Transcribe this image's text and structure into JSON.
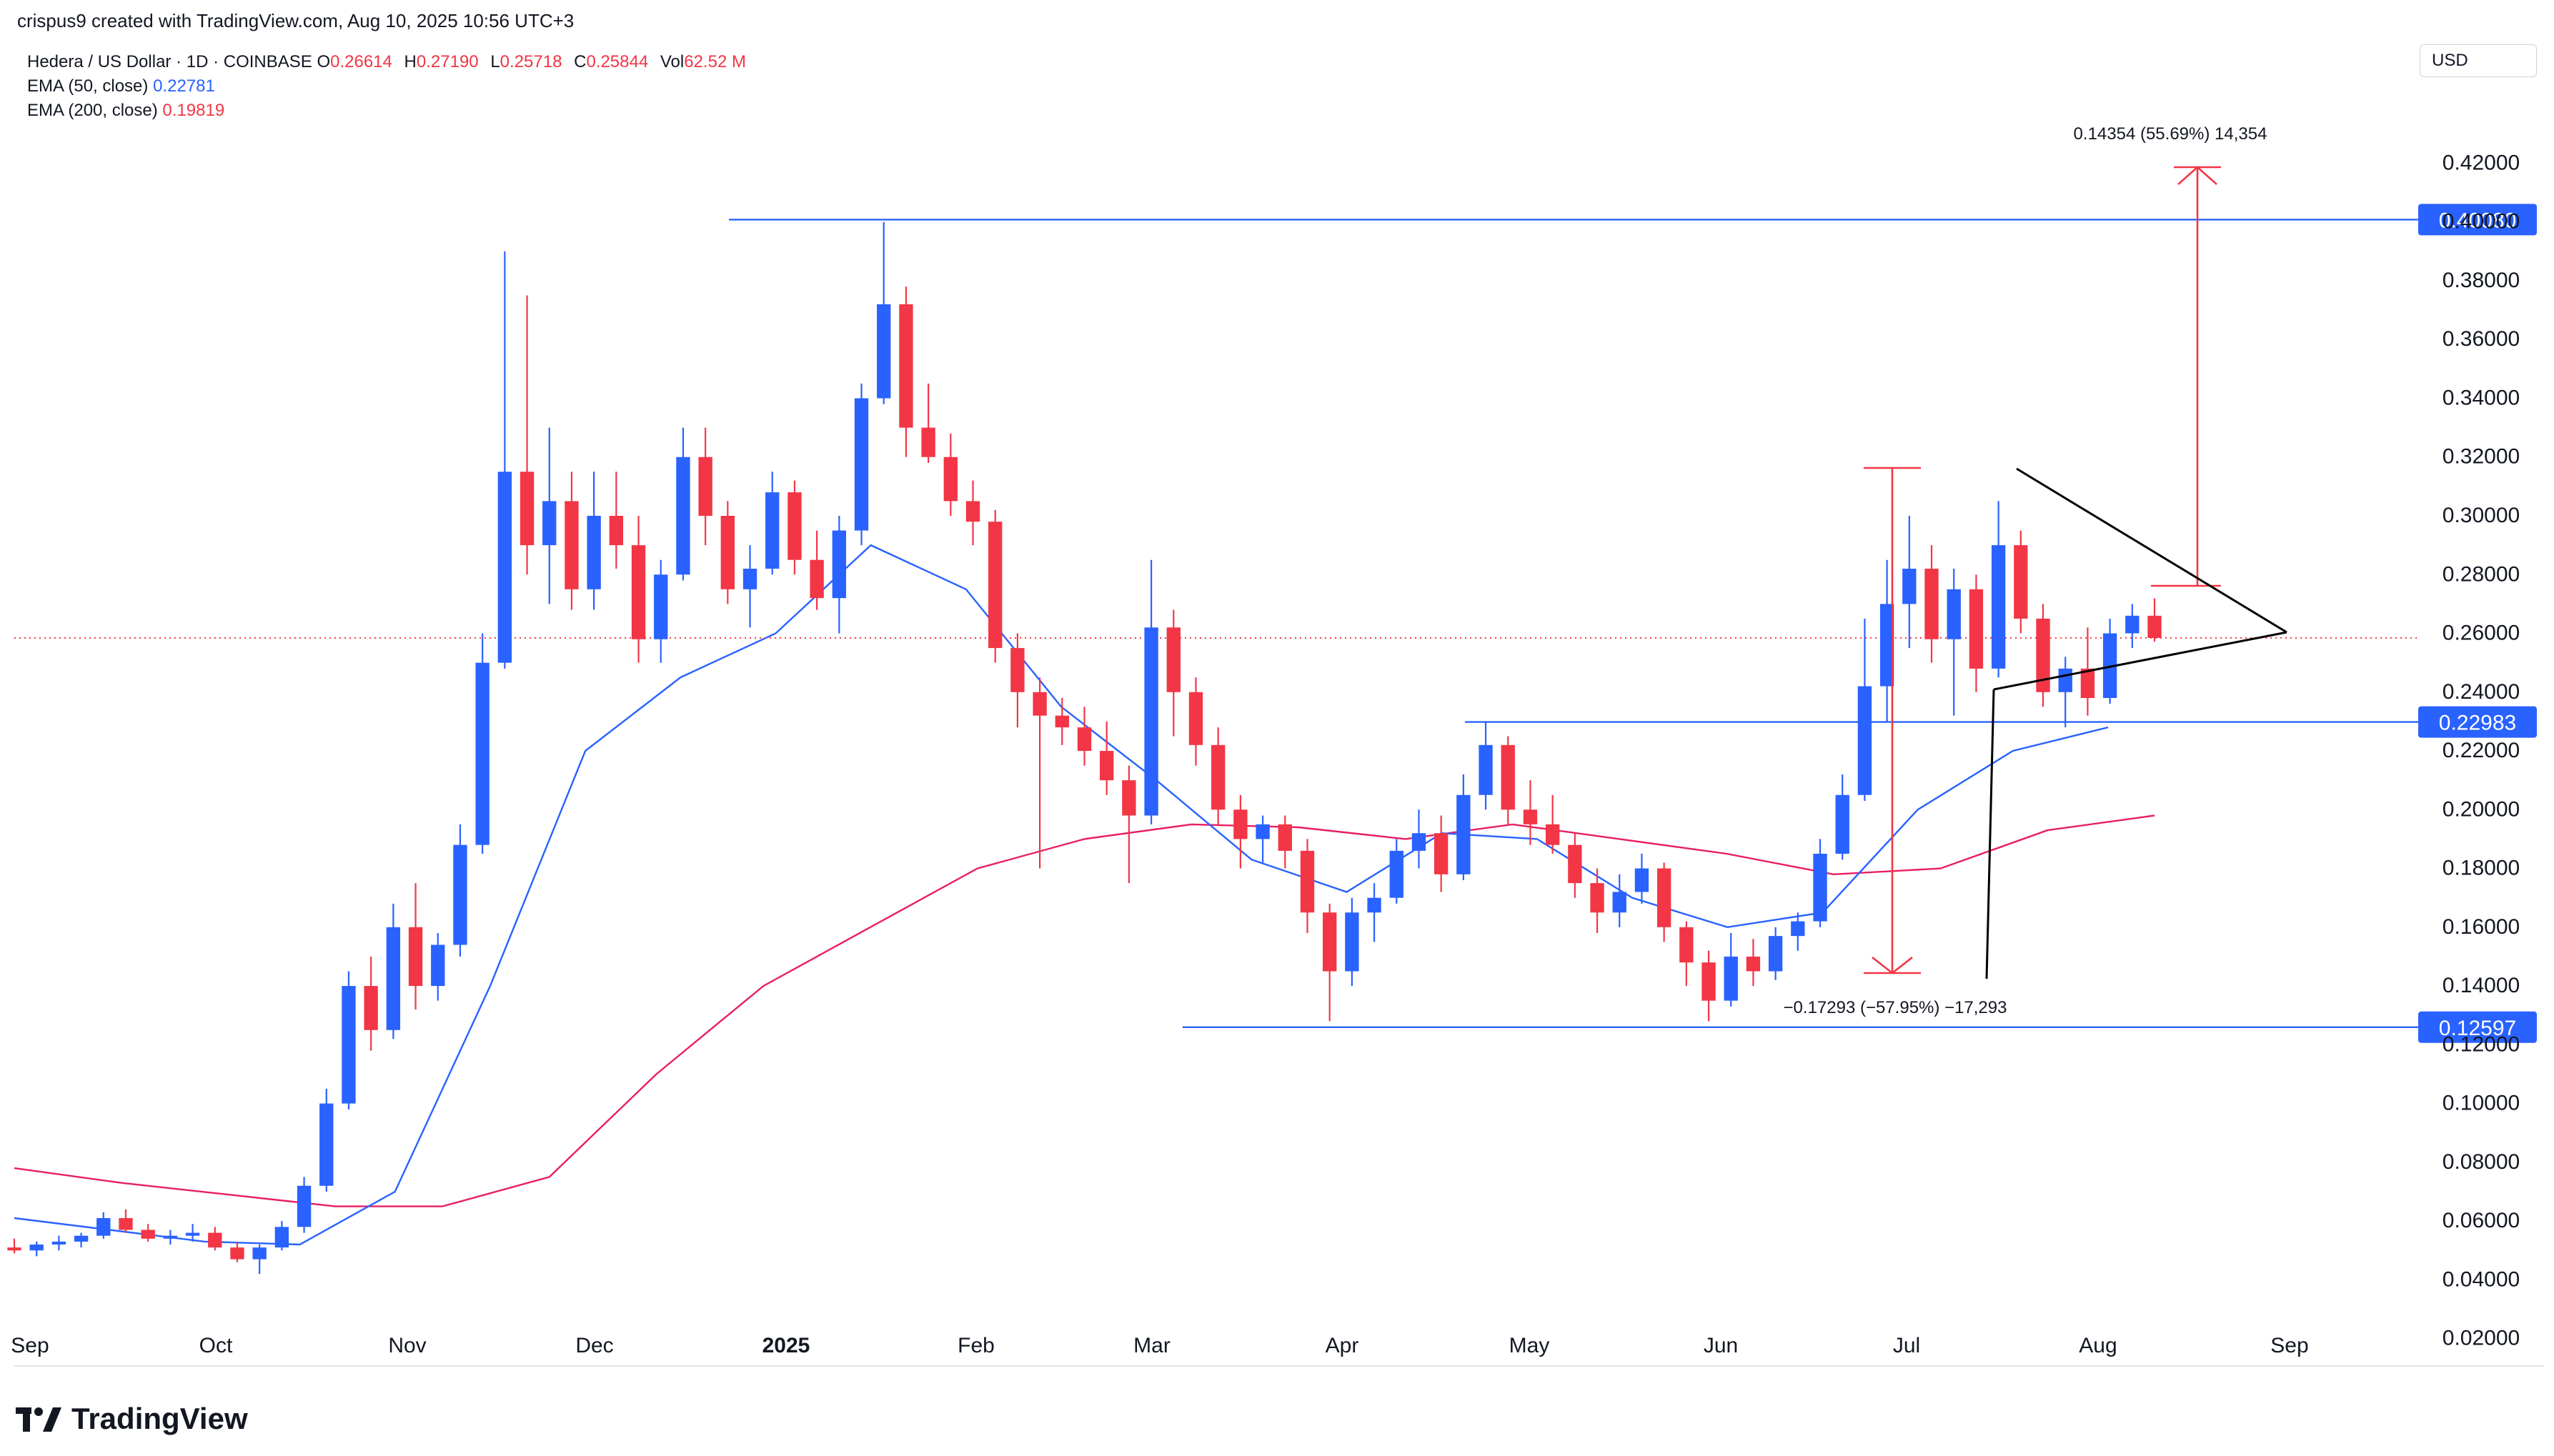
{
  "header": {
    "created_by": "crispus9 created with TradingView.com, Aug 10, 2025 10:56 UTC+3"
  },
  "legend": {
    "symbol": "Hedera / US Dollar · 1D · COINBASE",
    "ohlc": [
      {
        "k": "O",
        "v": "0.26614"
      },
      {
        "k": "H",
        "v": "0.27190"
      },
      {
        "k": "L",
        "v": "0.25718"
      },
      {
        "k": "C",
        "v": "0.25844"
      },
      {
        "k": "Vol",
        "v": "62.52 M"
      }
    ],
    "ema50": {
      "label": "EMA (50, close)",
      "value": "0.22781"
    },
    "ema200": {
      "label": "EMA (200, close)",
      "value": "0.19819"
    }
  },
  "currency_button": "USD",
  "brand": "TradingView",
  "colors": {
    "up": "#2962ff",
    "down": "#f23645",
    "ema50": "#2962ff",
    "ema200": "#e91e63",
    "level_line": "#2962ff",
    "arrow": "#f23645",
    "trendline": "#000000",
    "last_price": "#f23645",
    "grid_text": "#131722"
  },
  "chart_data": {
    "type": "candlestick",
    "symbol": "Hedera / US Dollar",
    "interval": "1D",
    "exchange": "COINBASE",
    "x_labels": [
      "Sep",
      "Oct",
      "Nov",
      "Dec",
      "2025",
      "Feb",
      "Mar",
      "Apr",
      "May",
      "Jun",
      "Jul",
      "Aug",
      "Sep"
    ],
    "y_ticks": [
      "0.42000",
      "0.40000",
      "0.38000",
      "0.36000",
      "0.34000",
      "0.32000",
      "0.30000",
      "0.28000",
      "0.26000",
      "0.24000",
      "0.22000",
      "0.20000",
      "0.18000",
      "0.16000",
      "0.14000",
      "0.12000",
      "0.10000",
      "0.08000",
      "0.06000",
      "0.04000",
      "0.02000"
    ],
    "ylim": [
      0.0,
      0.43
    ],
    "price_labels": [
      {
        "name": "resistance",
        "text": "0.40080",
        "value": 0.4008
      },
      {
        "name": "support-mid",
        "text": "0.22983",
        "value": 0.22983
      },
      {
        "name": "support-low",
        "text": "0.12597",
        "value": 0.12597
      }
    ],
    "last_price": 0.25844,
    "annotations": [
      {
        "name": "target-measure",
        "text": "0.14354 (55.69%) 14,354"
      },
      {
        "name": "drop-measure",
        "text": "−0.17293 (−57.95%) −17,293"
      }
    ],
    "ema50_anchor_values": [
      0.061,
      0.057,
      0.053,
      0.052,
      0.07,
      0.14,
      0.22,
      0.245,
      0.26,
      0.29,
      0.275,
      0.235,
      0.21,
      0.183,
      0.172,
      0.192,
      0.19,
      0.17,
      0.16,
      0.165,
      0.2,
      0.22,
      0.228
    ],
    "ema200_anchor_values": [
      0.078,
      0.073,
      0.069,
      0.065,
      0.065,
      0.075,
      0.11,
      0.14,
      0.16,
      0.18,
      0.19,
      0.195,
      0.194,
      0.19,
      0.195,
      0.19,
      0.185,
      0.178,
      0.18,
      0.193,
      0.198
    ],
    "candles": [
      {
        "o": 0.051,
        "h": 0.054,
        "l": 0.049,
        "c": 0.05
      },
      {
        "o": 0.05,
        "h": 0.053,
        "l": 0.048,
        "c": 0.052
      },
      {
        "o": 0.052,
        "h": 0.055,
        "l": 0.05,
        "c": 0.053
      },
      {
        "o": 0.053,
        "h": 0.056,
        "l": 0.051,
        "c": 0.055
      },
      {
        "o": 0.055,
        "h": 0.063,
        "l": 0.054,
        "c": 0.061
      },
      {
        "o": 0.061,
        "h": 0.064,
        "l": 0.056,
        "c": 0.057
      },
      {
        "o": 0.057,
        "h": 0.059,
        "l": 0.053,
        "c": 0.054
      },
      {
        "o": 0.054,
        "h": 0.057,
        "l": 0.052,
        "c": 0.055
      },
      {
        "o": 0.055,
        "h": 0.059,
        "l": 0.053,
        "c": 0.056
      },
      {
        "o": 0.056,
        "h": 0.058,
        "l": 0.05,
        "c": 0.051
      },
      {
        "o": 0.051,
        "h": 0.053,
        "l": 0.046,
        "c": 0.047
      },
      {
        "o": 0.047,
        "h": 0.052,
        "l": 0.042,
        "c": 0.051
      },
      {
        "o": 0.051,
        "h": 0.06,
        "l": 0.05,
        "c": 0.058
      },
      {
        "o": 0.058,
        "h": 0.075,
        "l": 0.056,
        "c": 0.072
      },
      {
        "o": 0.072,
        "h": 0.105,
        "l": 0.07,
        "c": 0.1
      },
      {
        "o": 0.1,
        "h": 0.145,
        "l": 0.098,
        "c": 0.14
      },
      {
        "o": 0.14,
        "h": 0.15,
        "l": 0.118,
        "c": 0.125
      },
      {
        "o": 0.125,
        "h": 0.168,
        "l": 0.122,
        "c": 0.16
      },
      {
        "o": 0.16,
        "h": 0.175,
        "l": 0.132,
        "c": 0.14
      },
      {
        "o": 0.14,
        "h": 0.158,
        "l": 0.135,
        "c": 0.154
      },
      {
        "o": 0.154,
        "h": 0.195,
        "l": 0.15,
        "c": 0.188
      },
      {
        "o": 0.188,
        "h": 0.26,
        "l": 0.185,
        "c": 0.25
      },
      {
        "o": 0.25,
        "h": 0.39,
        "l": 0.248,
        "c": 0.315
      },
      {
        "o": 0.315,
        "h": 0.375,
        "l": 0.28,
        "c": 0.29
      },
      {
        "o": 0.29,
        "h": 0.33,
        "l": 0.27,
        "c": 0.305
      },
      {
        "o": 0.305,
        "h": 0.315,
        "l": 0.268,
        "c": 0.275
      },
      {
        "o": 0.275,
        "h": 0.315,
        "l": 0.268,
        "c": 0.3
      },
      {
        "o": 0.3,
        "h": 0.315,
        "l": 0.282,
        "c": 0.29
      },
      {
        "o": 0.29,
        "h": 0.3,
        "l": 0.25,
        "c": 0.258
      },
      {
        "o": 0.258,
        "h": 0.285,
        "l": 0.25,
        "c": 0.28
      },
      {
        "o": 0.28,
        "h": 0.33,
        "l": 0.278,
        "c": 0.32
      },
      {
        "o": 0.32,
        "h": 0.33,
        "l": 0.29,
        "c": 0.3
      },
      {
        "o": 0.3,
        "h": 0.305,
        "l": 0.27,
        "c": 0.275
      },
      {
        "o": 0.275,
        "h": 0.29,
        "l": 0.262,
        "c": 0.282
      },
      {
        "o": 0.282,
        "h": 0.315,
        "l": 0.28,
        "c": 0.308
      },
      {
        "o": 0.308,
        "h": 0.312,
        "l": 0.28,
        "c": 0.285
      },
      {
        "o": 0.285,
        "h": 0.295,
        "l": 0.268,
        "c": 0.272
      },
      {
        "o": 0.272,
        "h": 0.3,
        "l": 0.26,
        "c": 0.295
      },
      {
        "o": 0.295,
        "h": 0.345,
        "l": 0.29,
        "c": 0.34
      },
      {
        "o": 0.34,
        "h": 0.4,
        "l": 0.338,
        "c": 0.372
      },
      {
        "o": 0.372,
        "h": 0.378,
        "l": 0.32,
        "c": 0.33
      },
      {
        "o": 0.33,
        "h": 0.345,
        "l": 0.318,
        "c": 0.32
      },
      {
        "o": 0.32,
        "h": 0.328,
        "l": 0.3,
        "c": 0.305
      },
      {
        "o": 0.305,
        "h": 0.312,
        "l": 0.29,
        "c": 0.298
      },
      {
        "o": 0.298,
        "h": 0.302,
        "l": 0.25,
        "c": 0.255
      },
      {
        "o": 0.255,
        "h": 0.26,
        "l": 0.228,
        "c": 0.24
      },
      {
        "o": 0.24,
        "h": 0.245,
        "l": 0.18,
        "c": 0.232
      },
      {
        "o": 0.232,
        "h": 0.238,
        "l": 0.222,
        "c": 0.228
      },
      {
        "o": 0.228,
        "h": 0.235,
        "l": 0.215,
        "c": 0.22
      },
      {
        "o": 0.22,
        "h": 0.23,
        "l": 0.205,
        "c": 0.21
      },
      {
        "o": 0.21,
        "h": 0.215,
        "l": 0.175,
        "c": 0.198
      },
      {
        "o": 0.198,
        "h": 0.285,
        "l": 0.195,
        "c": 0.262
      },
      {
        "o": 0.262,
        "h": 0.268,
        "l": 0.225,
        "c": 0.24
      },
      {
        "o": 0.24,
        "h": 0.245,
        "l": 0.215,
        "c": 0.222
      },
      {
        "o": 0.222,
        "h": 0.228,
        "l": 0.195,
        "c": 0.2
      },
      {
        "o": 0.2,
        "h": 0.205,
        "l": 0.18,
        "c": 0.19
      },
      {
        "o": 0.19,
        "h": 0.198,
        "l": 0.182,
        "c": 0.195
      },
      {
        "o": 0.195,
        "h": 0.198,
        "l": 0.18,
        "c": 0.186
      },
      {
        "o": 0.186,
        "h": 0.19,
        "l": 0.158,
        "c": 0.165
      },
      {
        "o": 0.165,
        "h": 0.168,
        "l": 0.128,
        "c": 0.145
      },
      {
        "o": 0.145,
        "h": 0.17,
        "l": 0.14,
        "c": 0.165
      },
      {
        "o": 0.165,
        "h": 0.175,
        "l": 0.155,
        "c": 0.17
      },
      {
        "o": 0.17,
        "h": 0.19,
        "l": 0.168,
        "c": 0.186
      },
      {
        "o": 0.186,
        "h": 0.2,
        "l": 0.18,
        "c": 0.192
      },
      {
        "o": 0.192,
        "h": 0.198,
        "l": 0.172,
        "c": 0.178
      },
      {
        "o": 0.178,
        "h": 0.212,
        "l": 0.176,
        "c": 0.205
      },
      {
        "o": 0.205,
        "h": 0.23,
        "l": 0.2,
        "c": 0.222
      },
      {
        "o": 0.222,
        "h": 0.225,
        "l": 0.195,
        "c": 0.2
      },
      {
        "o": 0.2,
        "h": 0.21,
        "l": 0.188,
        "c": 0.195
      },
      {
        "o": 0.195,
        "h": 0.205,
        "l": 0.185,
        "c": 0.188
      },
      {
        "o": 0.188,
        "h": 0.192,
        "l": 0.17,
        "c": 0.175
      },
      {
        "o": 0.175,
        "h": 0.18,
        "l": 0.158,
        "c": 0.165
      },
      {
        "o": 0.165,
        "h": 0.178,
        "l": 0.16,
        "c": 0.172
      },
      {
        "o": 0.172,
        "h": 0.185,
        "l": 0.168,
        "c": 0.18
      },
      {
        "o": 0.18,
        "h": 0.182,
        "l": 0.155,
        "c": 0.16
      },
      {
        "o": 0.16,
        "h": 0.162,
        "l": 0.14,
        "c": 0.148
      },
      {
        "o": 0.148,
        "h": 0.152,
        "l": 0.128,
        "c": 0.135
      },
      {
        "o": 0.135,
        "h": 0.158,
        "l": 0.133,
        "c": 0.15
      },
      {
        "o": 0.15,
        "h": 0.156,
        "l": 0.14,
        "c": 0.145
      },
      {
        "o": 0.145,
        "h": 0.16,
        "l": 0.142,
        "c": 0.157
      },
      {
        "o": 0.157,
        "h": 0.165,
        "l": 0.152,
        "c": 0.162
      },
      {
        "o": 0.162,
        "h": 0.19,
        "l": 0.16,
        "c": 0.185
      },
      {
        "o": 0.185,
        "h": 0.212,
        "l": 0.183,
        "c": 0.205
      },
      {
        "o": 0.205,
        "h": 0.265,
        "l": 0.203,
        "c": 0.242
      },
      {
        "o": 0.242,
        "h": 0.285,
        "l": 0.23,
        "c": 0.27
      },
      {
        "o": 0.27,
        "h": 0.3,
        "l": 0.255,
        "c": 0.282
      },
      {
        "o": 0.282,
        "h": 0.29,
        "l": 0.25,
        "c": 0.258
      },
      {
        "o": 0.258,
        "h": 0.282,
        "l": 0.232,
        "c": 0.275
      },
      {
        "o": 0.275,
        "h": 0.28,
        "l": 0.24,
        "c": 0.248
      },
      {
        "o": 0.248,
        "h": 0.305,
        "l": 0.245,
        "c": 0.29
      },
      {
        "o": 0.29,
        "h": 0.295,
        "l": 0.26,
        "c": 0.265
      },
      {
        "o": 0.265,
        "h": 0.27,
        "l": 0.235,
        "c": 0.24
      },
      {
        "o": 0.24,
        "h": 0.252,
        "l": 0.228,
        "c": 0.248
      },
      {
        "o": 0.248,
        "h": 0.262,
        "l": 0.232,
        "c": 0.238
      },
      {
        "o": 0.238,
        "h": 0.265,
        "l": 0.236,
        "c": 0.26
      },
      {
        "o": 0.26,
        "h": 0.27,
        "l": 0.255,
        "c": 0.266
      },
      {
        "o": 0.266,
        "h": 0.2719,
        "l": 0.25718,
        "c": 0.25844
      }
    ]
  }
}
